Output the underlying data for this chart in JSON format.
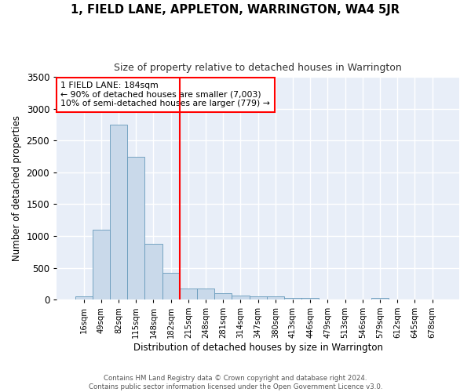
{
  "title": "1, FIELD LANE, APPLETON, WARRINGTON, WA4 5JR",
  "subtitle": "Size of property relative to detached houses in Warrington",
  "xlabel": "Distribution of detached houses by size in Warrington",
  "ylabel": "Number of detached properties",
  "bar_color": "#c9d9ea",
  "bar_edge_color": "#6699bb",
  "background_color": "#e8eef8",
  "grid_color": "#ffffff",
  "annotation_line1": "1 FIELD LANE: 184sqm",
  "annotation_line2": "← 90% of detached houses are smaller (7,003)",
  "annotation_line3": "10% of semi-detached houses are larger (779) →",
  "bin_labels": [
    "16sqm",
    "49sqm",
    "82sqm",
    "115sqm",
    "148sqm",
    "182sqm",
    "215sqm",
    "248sqm",
    "281sqm",
    "314sqm",
    "347sqm",
    "380sqm",
    "413sqm",
    "446sqm",
    "479sqm",
    "513sqm",
    "546sqm",
    "579sqm",
    "612sqm",
    "645sqm",
    "678sqm"
  ],
  "bar_heights": [
    50,
    1100,
    2750,
    2250,
    880,
    420,
    175,
    170,
    95,
    65,
    50,
    50,
    30,
    30,
    0,
    0,
    0,
    30,
    0,
    0,
    0
  ],
  "ylim": [
    0,
    3500
  ],
  "yticks": [
    0,
    500,
    1000,
    1500,
    2000,
    2500,
    3000,
    3500
  ],
  "footer_line1": "Contains HM Land Registry data © Crown copyright and database right 2024.",
  "footer_line2": "Contains public sector information licensed under the Open Government Licence v3.0."
}
